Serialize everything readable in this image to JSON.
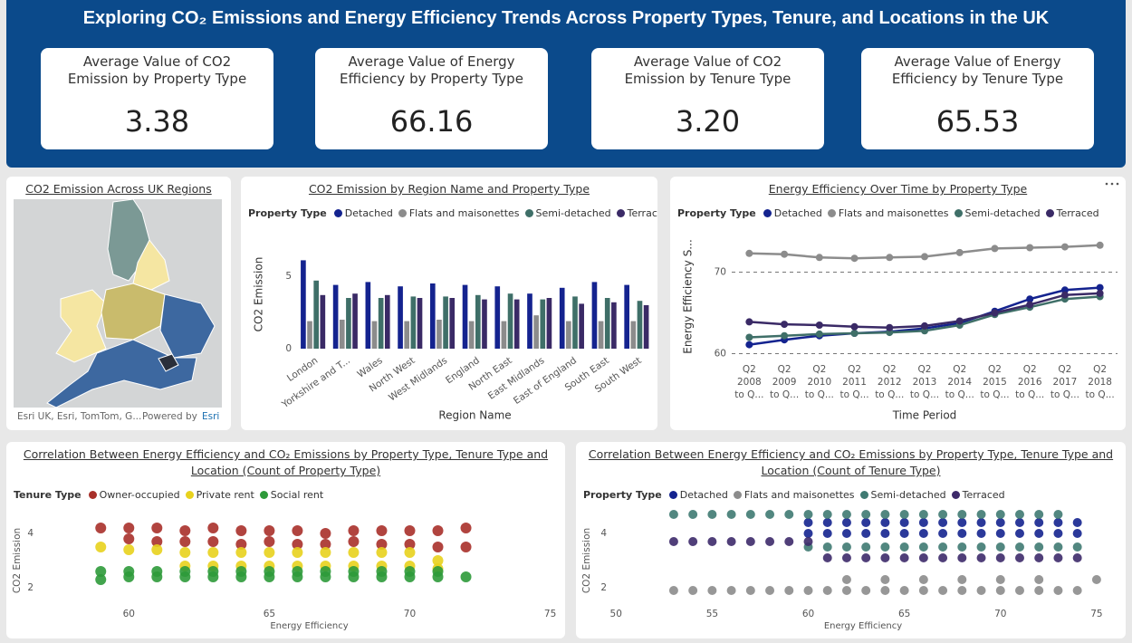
{
  "header": {
    "title": "Exploring CO₂ Emissions and Energy Efficiency Trends Across Property Types, Tenure, and Locations in the UK"
  },
  "cards": [
    {
      "label": "Average Value of CO2 Emission by Property Type",
      "value": "3.38"
    },
    {
      "label": "Average Value of Energy Efficiency by Property Type",
      "value": "66.16"
    },
    {
      "label": "Average Value of CO2 Emission by Tenure Type",
      "value": "3.20"
    },
    {
      "label": "Average Value of Energy Efficiency by Tenure Type",
      "value": "65.53"
    }
  ],
  "map": {
    "title": "CO2 Emission Across UK Regions",
    "attribution": "Esri UK, Esri, TomTom, G...",
    "powered_by": "Powered by",
    "provider": "Esri"
  },
  "chart_data": [
    {
      "type": "bar",
      "title": "CO2 Emission by Region Name and Property Type",
      "legend_title": "Property Type",
      "x_label": "Region Name",
      "y_label": "CO2 Emission",
      "categories": [
        "London",
        "Yorkshire and T...",
        "Wales",
        "North West",
        "West Midlands",
        "England",
        "North East",
        "East Midlands",
        "East of England",
        "South East",
        "South West"
      ],
      "series": [
        {
          "name": "Detached",
          "color": "#14238f",
          "values": [
            6.1,
            4.4,
            4.6,
            4.3,
            4.5,
            4.4,
            4.3,
            3.8,
            4.2,
            4.6,
            4.4
          ]
        },
        {
          "name": "Flats and maisonettes",
          "color": "#8c8c8c",
          "values": [
            1.9,
            2.0,
            1.9,
            1.9,
            2.0,
            1.9,
            1.9,
            2.3,
            1.9,
            1.9,
            1.9
          ]
        },
        {
          "name": "Semi-detached",
          "color": "#3f6f68",
          "values": [
            4.7,
            3.5,
            3.5,
            3.6,
            3.6,
            3.7,
            3.8,
            3.4,
            3.6,
            3.5,
            3.3
          ]
        },
        {
          "name": "Terraced",
          "color": "#3a2a66",
          "values": [
            3.7,
            3.8,
            3.7,
            3.5,
            3.5,
            3.4,
            3.4,
            3.5,
            3.1,
            3.2,
            3.0
          ]
        }
      ],
      "ylim": [
        0,
        7.5
      ],
      "yticks": [
        0,
        5
      ]
    },
    {
      "type": "line",
      "title": "Energy Efficiency Over Time by Property Type",
      "legend_title": "Property Type",
      "x_label": "Time Period",
      "y_label": "Energy Efficiency S...",
      "categories": [
        [
          "Q2",
          "2008",
          "to Q..."
        ],
        [
          "Q2",
          "2009",
          "to Q..."
        ],
        [
          "Q2",
          "2010",
          "to Q..."
        ],
        [
          "Q2",
          "2011",
          "to Q..."
        ],
        [
          "Q2",
          "2012",
          "to Q..."
        ],
        [
          "Q2",
          "2013",
          "to Q..."
        ],
        [
          "Q2",
          "2014",
          "to Q..."
        ],
        [
          "Q2",
          "2015",
          "to Q..."
        ],
        [
          "Q2",
          "2016",
          "to Q..."
        ],
        [
          "Q2",
          "2017",
          "to Q..."
        ],
        [
          "Q2",
          "2018",
          "to Q..."
        ]
      ],
      "series": [
        {
          "name": "Detached",
          "color": "#14238f",
          "values": [
            61.1,
            61.7,
            62.2,
            62.5,
            62.7,
            63.1,
            63.75,
            65.2,
            66.7,
            67.8,
            68.1
          ]
        },
        {
          "name": "Flats and maisonettes",
          "color": "#8c8c8c",
          "values": [
            72.3,
            72.2,
            71.8,
            71.7,
            71.8,
            71.9,
            72.4,
            72.9,
            73.0,
            73.1,
            73.3
          ]
        },
        {
          "name": "Semi-detached",
          "color": "#3f6f68",
          "values": [
            62.0,
            62.2,
            62.4,
            62.5,
            62.6,
            62.8,
            63.5,
            64.8,
            65.7,
            66.7,
            67.0
          ]
        },
        {
          "name": "Terraced",
          "color": "#3a2a66",
          "values": [
            63.9,
            63.6,
            63.5,
            63.3,
            63.2,
            63.4,
            64.0,
            65.0,
            66.0,
            67.2,
            67.4
          ]
        }
      ],
      "ylim": [
        59.5,
        74.5
      ],
      "yticks": [
        60,
        70
      ],
      "grid": true
    },
    {
      "type": "scatter",
      "title": "Correlation Between Energy Efficiency and CO₂ Emissions by Property Type, Tenure Type and Location (Count of Property Type)",
      "legend_title": "Tenure Type",
      "x_label": "Energy Efficiency",
      "y_label": "CO2 Emission",
      "series": [
        {
          "name": "Owner-occupied",
          "color": "#a8302a",
          "x": [
            59,
            60,
            61,
            62,
            63,
            64,
            65,
            66,
            67,
            68,
            69,
            70,
            71,
            72,
            60,
            61,
            62,
            63,
            64,
            65,
            66,
            67,
            68,
            69,
            70,
            71,
            72
          ],
          "values": [
            4.2,
            4.2,
            4.2,
            4.1,
            4.2,
            4.1,
            4.1,
            4.1,
            4.0,
            4.1,
            4.1,
            4.1,
            4.1,
            4.2,
            3.8,
            3.7,
            3.7,
            3.7,
            3.6,
            3.7,
            3.6,
            3.6,
            3.7,
            3.6,
            3.6,
            3.5,
            3.5
          ]
        },
        {
          "name": "Private rent",
          "color": "#e8d21d",
          "x": [
            59,
            60,
            61,
            62,
            63,
            64,
            65,
            66,
            67,
            68,
            69,
            70,
            71,
            62,
            63,
            64,
            65,
            66,
            67,
            68,
            69,
            70,
            71
          ],
          "values": [
            3.5,
            3.4,
            3.4,
            3.3,
            3.3,
            3.3,
            3.3,
            3.3,
            3.3,
            3.3,
            3.3,
            3.3,
            3.0,
            2.8,
            2.8,
            2.8,
            2.8,
            2.8,
            2.8,
            2.8,
            2.8,
            2.8,
            2.7
          ]
        },
        {
          "name": "Social rent",
          "color": "#2e9a3a",
          "x": [
            59,
            60,
            61,
            62,
            63,
            64,
            65,
            66,
            67,
            68,
            69,
            70,
            71,
            72,
            59,
            60,
            61,
            62,
            63,
            64,
            65,
            66,
            67,
            68,
            69,
            70,
            71
          ],
          "values": [
            2.3,
            2.4,
            2.4,
            2.4,
            2.4,
            2.4,
            2.4,
            2.4,
            2.4,
            2.4,
            2.4,
            2.4,
            2.4,
            2.4,
            2.6,
            2.6,
            2.6,
            2.6,
            2.6,
            2.6,
            2.6,
            2.6,
            2.6,
            2.6,
            2.6,
            2.6,
            2.6
          ]
        }
      ],
      "xlim": [
        56.8,
        75.4
      ],
      "xticks": [
        60,
        65,
        70,
        75
      ],
      "ylim": [
        1.3,
        4.7
      ],
      "yticks": [
        2,
        4
      ]
    },
    {
      "type": "scatter",
      "title": "Correlation Between Energy Efficiency and CO₂ Emissions by Property Type, Tenure Type and Location (Count of Tenure Type)",
      "legend_title": "Property Type",
      "x_label": "Energy Efficiency",
      "y_label": "CO2 Emission",
      "series": [
        {
          "name": "Detached",
          "color": "#14238f",
          "x": [
            60,
            61,
            62,
            63,
            64,
            65,
            66,
            67,
            68,
            69,
            70,
            71,
            72,
            73,
            74,
            60,
            61,
            62,
            63,
            64,
            65,
            66,
            67,
            68,
            69,
            70,
            71,
            72,
            73,
            74
          ],
          "values": [
            4.4,
            4.4,
            4.4,
            4.4,
            4.4,
            4.4,
            4.4,
            4.4,
            4.4,
            4.4,
            4.4,
            4.4,
            4.4,
            4.4,
            4.4,
            4.0,
            4.0,
            4.0,
            4.0,
            4.0,
            4.0,
            4.0,
            4.0,
            4.0,
            4.0,
            4.0,
            4.0,
            4.0,
            4.0,
            4.0
          ]
        },
        {
          "name": "Flats and maisonettes",
          "color": "#8c8c8c",
          "x": [
            53,
            54,
            55,
            56,
            57,
            58,
            59,
            60,
            61,
            62,
            63,
            64,
            65,
            66,
            67,
            68,
            69,
            70,
            71,
            72,
            73,
            74,
            62,
            64,
            66,
            68,
            70,
            72,
            75
          ],
          "values": [
            1.9,
            1.9,
            1.9,
            1.9,
            1.9,
            1.9,
            1.9,
            1.9,
            1.9,
            1.9,
            1.9,
            1.9,
            1.9,
            1.9,
            1.9,
            1.9,
            1.9,
            1.9,
            1.9,
            1.9,
            1.9,
            1.9,
            2.3,
            2.3,
            2.3,
            2.3,
            2.3,
            2.3,
            2.3
          ]
        },
        {
          "name": "Semi-detached",
          "color": "#3f7a72",
          "x": [
            53,
            54,
            55,
            56,
            57,
            58,
            59,
            60,
            61,
            62,
            63,
            64,
            65,
            66,
            67,
            68,
            69,
            70,
            71,
            72,
            73,
            60,
            61,
            62,
            63,
            64,
            65,
            66,
            67,
            68,
            69,
            70,
            71,
            72,
            73,
            74
          ],
          "values": [
            4.7,
            4.7,
            4.7,
            4.7,
            4.7,
            4.7,
            4.7,
            4.7,
            4.7,
            4.7,
            4.7,
            4.7,
            4.7,
            4.7,
            4.7,
            4.7,
            4.7,
            4.7,
            4.7,
            4.7,
            4.7,
            3.5,
            3.5,
            3.5,
            3.5,
            3.5,
            3.5,
            3.5,
            3.5,
            3.5,
            3.5,
            3.5,
            3.5,
            3.5,
            3.5,
            3.5
          ]
        },
        {
          "name": "Terraced",
          "color": "#3d2a6a",
          "x": [
            53,
            54,
            55,
            56,
            57,
            58,
            59,
            60,
            61,
            62,
            63,
            64,
            65,
            66,
            67,
            68,
            69,
            70,
            71,
            72,
            73,
            74
          ],
          "values": [
            3.7,
            3.7,
            3.7,
            3.7,
            3.7,
            3.7,
            3.7,
            3.7,
            3.1,
            3.1,
            3.1,
            3.1,
            3.1,
            3.1,
            3.1,
            3.1,
            3.1,
            3.1,
            3.1,
            3.1,
            3.1,
            3.1
          ]
        }
      ],
      "xlim": [
        49.8,
        75.9
      ],
      "xticks": [
        50,
        55,
        60,
        65,
        70,
        75
      ],
      "ylim": [
        1.3,
        4.7
      ],
      "yticks": [
        2,
        4
      ]
    }
  ]
}
